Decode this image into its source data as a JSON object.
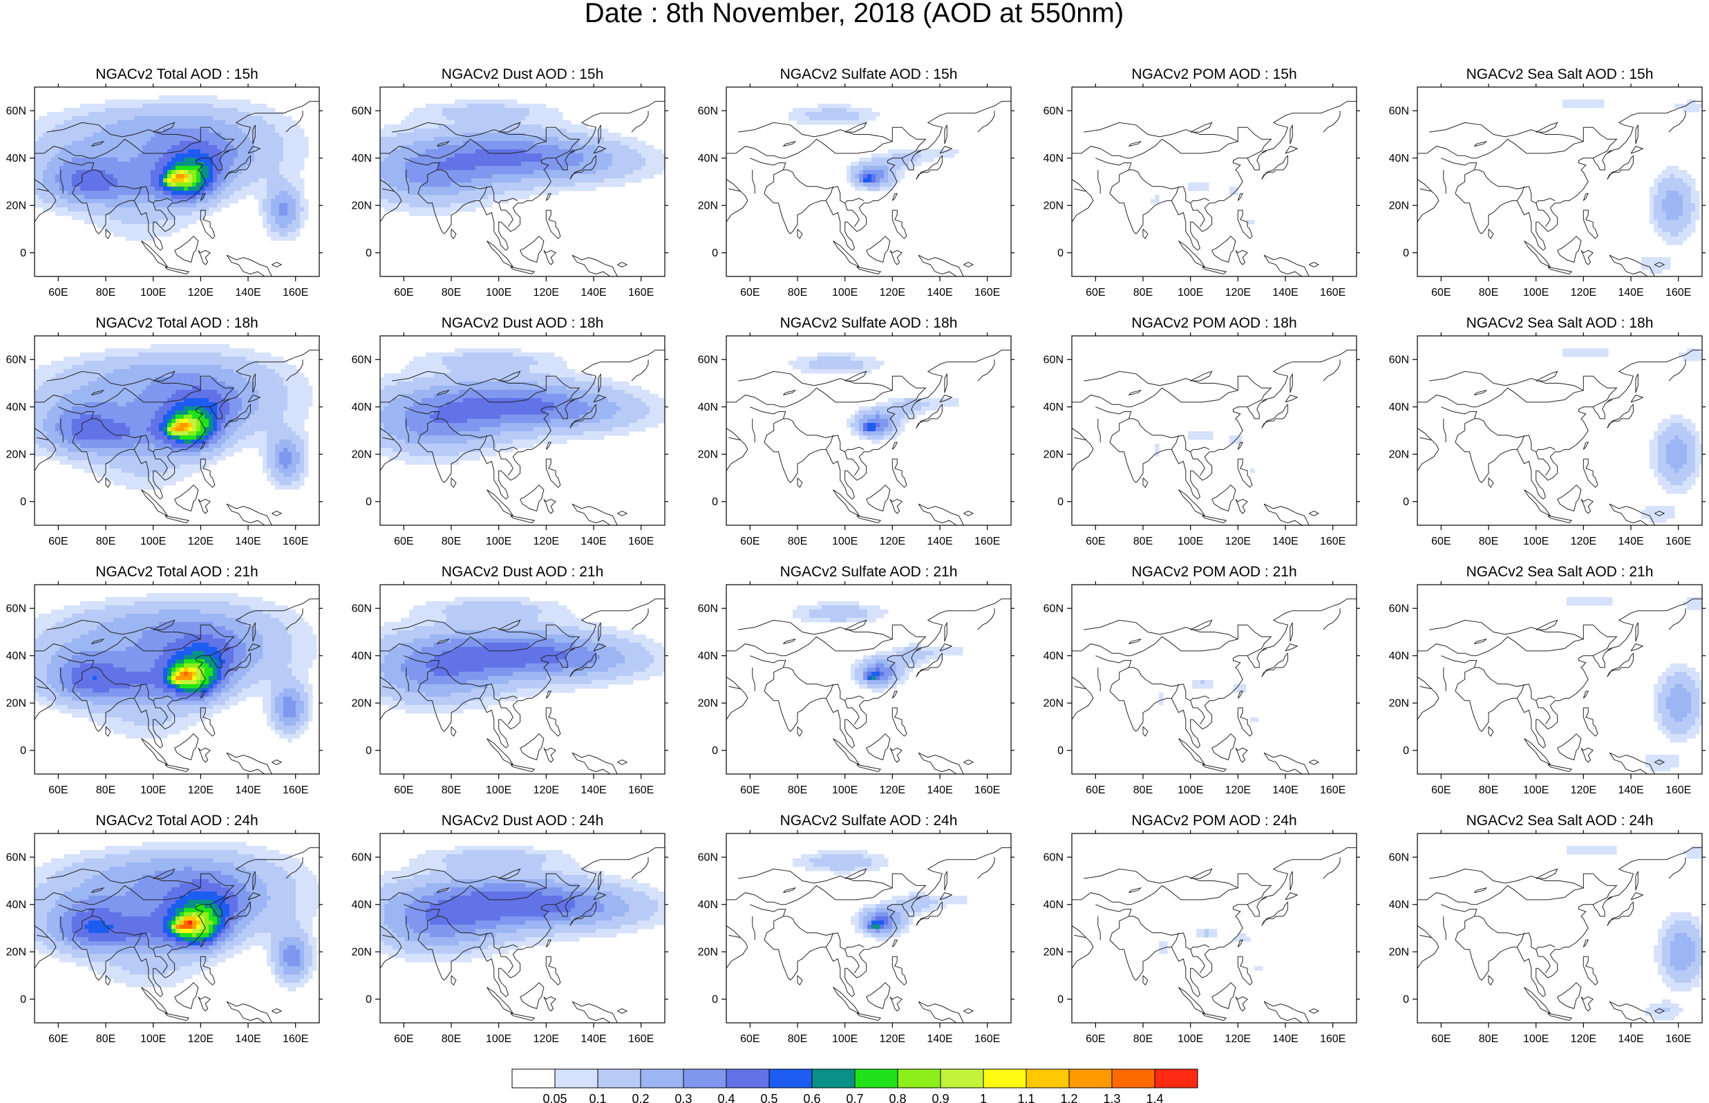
{
  "title": "Date : 8th November, 2018 (AOD at 550nm)",
  "row_hours": [
    "15h",
    "18h",
    "21h",
    "24h"
  ],
  "columns": [
    {
      "key": "total",
      "titles": [
        "NGACv2 Total AOD : 15h",
        "NGACv2 Total AOD : 18h",
        "NGACv2 Total AOD : 21h",
        "NGACv2 Total AOD : 24h"
      ]
    },
    {
      "key": "dust",
      "titles": [
        "NGACv2 Dust AOD : 15h",
        "NGACv2 Dust AOD : 18h",
        "NGACv2 Dust AOD : 21h",
        "NGACv2 Dust AOD : 24h"
      ]
    },
    {
      "key": "sulfate",
      "titles": [
        "NGACv2 Sulfate AOD : 15h",
        "NGACv2 Sulfate AOD : 18h",
        "NGACv2 Sulfate AOD : 21h",
        "NGACv2 Sulfate AOD : 24h"
      ]
    },
    {
      "key": "pom",
      "titles": [
        "NGACv2 POM AOD : 15h",
        "NGACv2 POM AOD : 18h",
        "NGACv2 POM AOD : 21h",
        "NGACv2 POM AOD : 24h"
      ]
    },
    {
      "key": "seasalt",
      "titles": [
        "NGACv2 Sea Salt AOD : 15h",
        "NGACv2 Sea Salt AOD : 18h",
        "NGACv2 Sea Salt AOD : 21h",
        "NGACv2 Sea Salt  AOD : 24h"
      ]
    }
  ],
  "lon_ticks": [
    "60E",
    "80E",
    "100E",
    "120E",
    "140E",
    "160E"
  ],
  "lat_ticks": [
    "60N",
    "40N",
    "20N",
    "0"
  ],
  "colorbar": {
    "labels": [
      "0.05",
      "0.1",
      "0.2",
      "0.3",
      "0.4",
      "0.5",
      "0.6",
      "0.7",
      "0.8",
      "0.9",
      "1",
      "1.1",
      "1.2",
      "1.3",
      "1.4"
    ],
    "colors": [
      "#ffffff",
      "#d6e2fb",
      "#b8cbf7",
      "#9cb5f3",
      "#7f97ee",
      "#6273e8",
      "#1c5cf0",
      "#099088",
      "#20e21a",
      "#8cee1a",
      "#c4f33c",
      "#fffb12",
      "#ffc800",
      "#ff9a00",
      "#ff6a00",
      "#ff2a12"
    ]
  }
}
